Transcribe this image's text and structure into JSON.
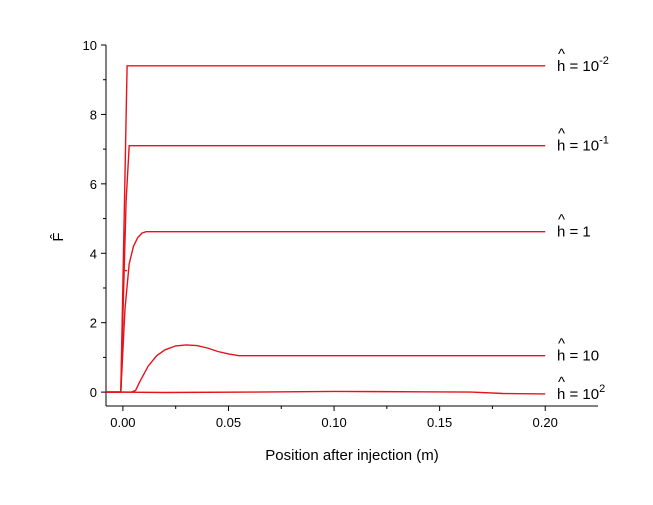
{
  "chart_data": {
    "type": "line",
    "xlabel": "Position after injection (m)",
    "ylabel": "F̂",
    "xlim": [
      -0.008,
      0.225
    ],
    "ylim": [
      -0.4,
      10
    ],
    "x_ticks": [
      0.0,
      0.05,
      0.1,
      0.15,
      0.2
    ],
    "x_tick_labels": [
      "0.00",
      "0.05",
      "0.10",
      "0.15",
      "0.20"
    ],
    "y_ticks": [
      0,
      2,
      4,
      6,
      8,
      10
    ],
    "y_tick_labels": [
      "0",
      "2",
      "4",
      "6",
      "8",
      "10"
    ],
    "grid": false,
    "series": [
      {
        "label": {
          "hat": "^",
          "base": "h = 10",
          "exp": "-2"
        },
        "x": [
          -0.008,
          -0.001,
          0.002,
          0.2
        ],
        "y": [
          0,
          0,
          9.4,
          9.4
        ]
      },
      {
        "label": {
          "hat": "^",
          "base": "h = 10",
          "exp": "-1"
        },
        "x": [
          -0.008,
          -0.001,
          0.0015,
          0.003,
          0.2
        ],
        "y": [
          0,
          0,
          5.5,
          7.1,
          7.1
        ]
      },
      {
        "label": {
          "hat": "^",
          "base": "h = 1",
          "exp": ""
        },
        "x": [
          -0.008,
          -0.001,
          0.001,
          0.003,
          0.005,
          0.007,
          0.009,
          0.011,
          0.2
        ],
        "y": [
          0,
          0,
          2.4,
          3.7,
          4.2,
          4.45,
          4.58,
          4.62,
          4.62
        ],
        "secondary": {
          "x": [
            0.001,
            0.002
          ],
          "y": [
            3.5,
            3.5
          ]
        }
      },
      {
        "label": {
          "hat": "^",
          "base": "h = 10",
          "exp": ""
        },
        "x": [
          -0.008,
          0.004,
          0.006,
          0.008,
          0.012,
          0.016,
          0.02,
          0.025,
          0.03,
          0.035,
          0.04,
          0.045,
          0.05,
          0.055,
          0.2
        ],
        "y": [
          0,
          0,
          0.05,
          0.3,
          0.75,
          1.05,
          1.22,
          1.33,
          1.36,
          1.34,
          1.27,
          1.17,
          1.1,
          1.05,
          1.05
        ]
      },
      {
        "label": {
          "hat": "^",
          "base": "h = 10",
          "exp": "2"
        },
        "x": [
          -0.008,
          0.0,
          0.02,
          0.06,
          0.1,
          0.14,
          0.165,
          0.18,
          0.2
        ],
        "y": [
          0,
          0,
          -0.01,
          0.0,
          0.02,
          0.01,
          0.0,
          -0.04,
          -0.05
        ]
      }
    ]
  }
}
